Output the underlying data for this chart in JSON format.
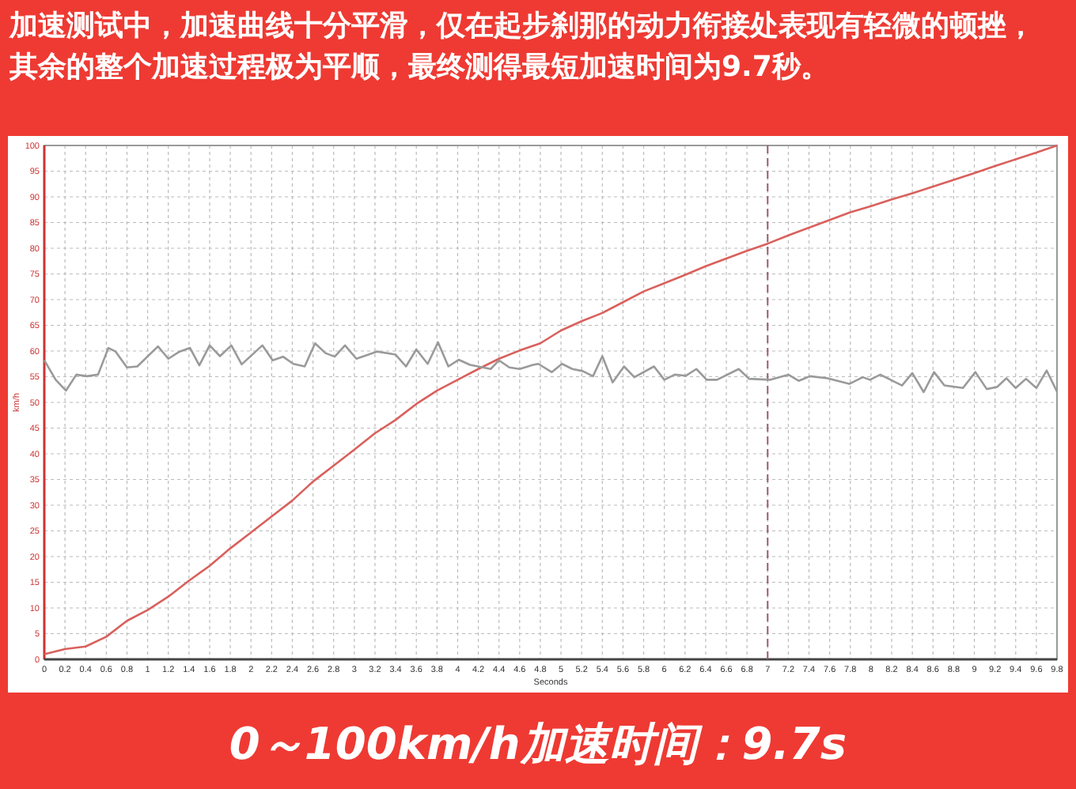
{
  "chart_data": {
    "type": "line",
    "title": "加速测试中，加速曲线十分平滑，仅在起步刹那的动力衔接处表现有轻微的顿挫，其余的整个加速过程极为平顺，最终测得最短加速时间为9.7秒。",
    "xlabel": "Seconds",
    "ylabel": "km/h",
    "annotations": [
      "0～100km/h加速时间：9.7s"
    ],
    "xlim": [
      0,
      9.8
    ],
    "ylim": [
      0,
      100
    ],
    "xticks": [
      0,
      0.2,
      0.4,
      0.6,
      0.8,
      1,
      1.2,
      1.4,
      1.6,
      1.8,
      2,
      2.2,
      2.4,
      2.6,
      2.8,
      3,
      3.2,
      3.4,
      3.6,
      3.8,
      4,
      4.2,
      4.4,
      4.6,
      4.8,
      5,
      5.2,
      5.4,
      5.6,
      5.8,
      6,
      6.2,
      6.4,
      6.6,
      6.8,
      7,
      7.2,
      7.4,
      7.6,
      7.8,
      8,
      8.2,
      8.4,
      8.6,
      8.8,
      9,
      9.2,
      9.4,
      9.6,
      9.8
    ],
    "yticks": [
      0,
      5,
      10,
      15,
      20,
      25,
      30,
      35,
      40,
      45,
      50,
      55,
      60,
      65,
      70,
      75,
      80,
      85,
      90,
      95,
      100
    ],
    "grid": true,
    "line_style": "solid",
    "marker": "none",
    "ref_lines": [
      {
        "axis": "x",
        "value": 7,
        "color": "#a05a6a",
        "line_style": "dashed"
      }
    ],
    "series": [
      {
        "color": "#d9605c",
        "x": [
          0,
          0.2,
          0.4,
          0.6,
          0.8,
          1,
          1.2,
          1.4,
          1.6,
          1.8,
          2,
          2.2,
          2.4,
          2.6,
          2.8,
          3,
          3.2,
          3.4,
          3.6,
          3.8,
          4,
          4.2,
          4.4,
          4.6,
          4.8,
          5,
          5.2,
          5.4,
          5.6,
          5.8,
          6,
          6.2,
          6.4,
          6.6,
          6.8,
          7,
          7.2,
          7.4,
          7.6,
          7.8,
          8,
          8.2,
          8.4,
          8.6,
          8.8,
          9,
          9.2,
          9.4,
          9.6,
          9.8
        ],
        "values": [
          1,
          2,
          2.5,
          4.4,
          7.5,
          9.6,
          12.2,
          15.3,
          18.2,
          21.6,
          24.7,
          27.8,
          30.9,
          34.6,
          37.7,
          40.8,
          44,
          46.6,
          49.7,
          52.3,
          54.4,
          56.5,
          58.5,
          60.1,
          61.5,
          64,
          65.8,
          67.4,
          69.5,
          71.6,
          73.2,
          74.8,
          76.5,
          78,
          79.5,
          80.9,
          82.5,
          84,
          85.5,
          87,
          88.2,
          89.5,
          90.7,
          92,
          93.3,
          94.6,
          96,
          97.3,
          98.6,
          100
        ]
      },
      {
        "color": "#9a9a9a",
        "x": [
          0,
          0.11,
          0.21,
          0.31,
          0.41,
          0.52,
          0.62,
          0.69,
          0.8,
          0.9,
          1.1,
          1.2,
          1.31,
          1.41,
          1.5,
          1.6,
          1.7,
          1.81,
          1.91,
          2.11,
          2.21,
          2.31,
          2.41,
          2.52,
          2.62,
          2.72,
          2.81,
          2.91,
          3.02,
          3.22,
          3.4,
          3.5,
          3.6,
          3.71,
          3.81,
          3.91,
          4.01,
          4.12,
          4.32,
          4.4,
          4.5,
          4.6,
          4.73,
          4.78,
          4.91,
          5.01,
          5.11,
          5.21,
          5.31,
          5.4,
          5.5,
          5.61,
          5.71,
          5.9,
          6,
          6.1,
          6.21,
          6.31,
          6.41,
          6.51,
          6.72,
          6.82,
          7.02,
          7.2,
          7.3,
          7.41,
          7.58,
          7.79,
          7.92,
          7.99,
          8.09,
          8.3,
          8.4,
          8.51,
          8.61,
          8.71,
          8.89,
          9.01,
          9.12,
          9.22,
          9.31,
          9.4,
          9.5,
          9.6,
          9.7,
          9.8
        ],
        "values": [
          58.2,
          54.4,
          52.3,
          55.4,
          55.1,
          55.4,
          60.6,
          59.9,
          56.8,
          57,
          60.9,
          58.5,
          59.9,
          60.6,
          57.2,
          61.1,
          59,
          61.1,
          57.4,
          61.1,
          58.2,
          58.9,
          57.5,
          57,
          61.5,
          59.6,
          58.9,
          61.1,
          58.5,
          59.9,
          59.3,
          57,
          60.3,
          57.5,
          61.7,
          57,
          58.3,
          57.3,
          56.5,
          58.2,
          56.8,
          56.5,
          57.3,
          57.5,
          55.9,
          57.5,
          56.5,
          56.1,
          55.1,
          59,
          53.9,
          57,
          54.9,
          57,
          54.4,
          55.4,
          55.2,
          56.5,
          54.4,
          54.4,
          56.5,
          54.6,
          54.4,
          55.4,
          54.2,
          55.1,
          54.7,
          53.6,
          54.9,
          54.4,
          55.4,
          53.3,
          55.7,
          52,
          55.9,
          53.3,
          52.8,
          55.9,
          52.6,
          53,
          54.7,
          52.8,
          54.6,
          52.8,
          56.2,
          52.1
        ]
      }
    ]
  }
}
